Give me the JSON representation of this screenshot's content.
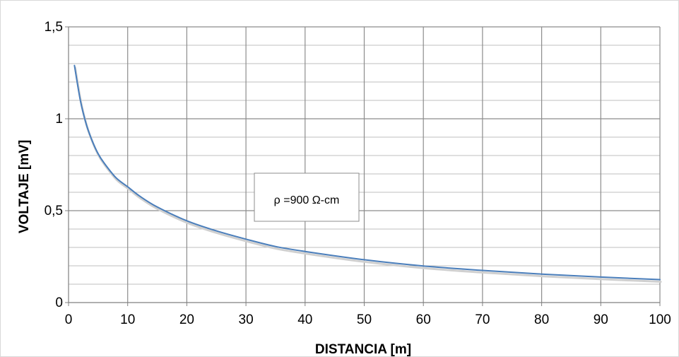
{
  "chart_data": {
    "type": "line",
    "title": "",
    "xlabel": "DISTANCIA [m]",
    "ylabel": "VOLTAJE [mV]",
    "xlim": [
      0,
      100
    ],
    "ylim": [
      0,
      1.5
    ],
    "x_ticks": [
      0,
      10,
      20,
      30,
      40,
      50,
      60,
      70,
      80,
      90,
      100
    ],
    "x_tick_labels": [
      "0",
      "10",
      "20",
      "30",
      "40",
      "50",
      "60",
      "70",
      "80",
      "90",
      "100"
    ],
    "y_ticks": [
      0,
      0.5,
      1,
      1.5
    ],
    "y_tick_labels": [
      "0",
      "0,5",
      "1",
      "1,5"
    ],
    "grid": true,
    "annotation": "ρ =900 Ω-cm",
    "series_color": "#4a7ebb",
    "series": [
      {
        "x": [
          1,
          2,
          3,
          4,
          5,
          6,
          8,
          10,
          12,
          15,
          20,
          25,
          30,
          35,
          40,
          50,
          60,
          70,
          80,
          90,
          100
        ],
        "values": [
          1.29,
          1.1,
          0.97,
          0.88,
          0.81,
          0.76,
          0.68,
          0.63,
          0.58,
          0.52,
          0.445,
          0.39,
          0.345,
          0.305,
          0.278,
          0.233,
          0.199,
          0.175,
          0.155,
          0.139,
          0.125
        ]
      }
    ]
  }
}
